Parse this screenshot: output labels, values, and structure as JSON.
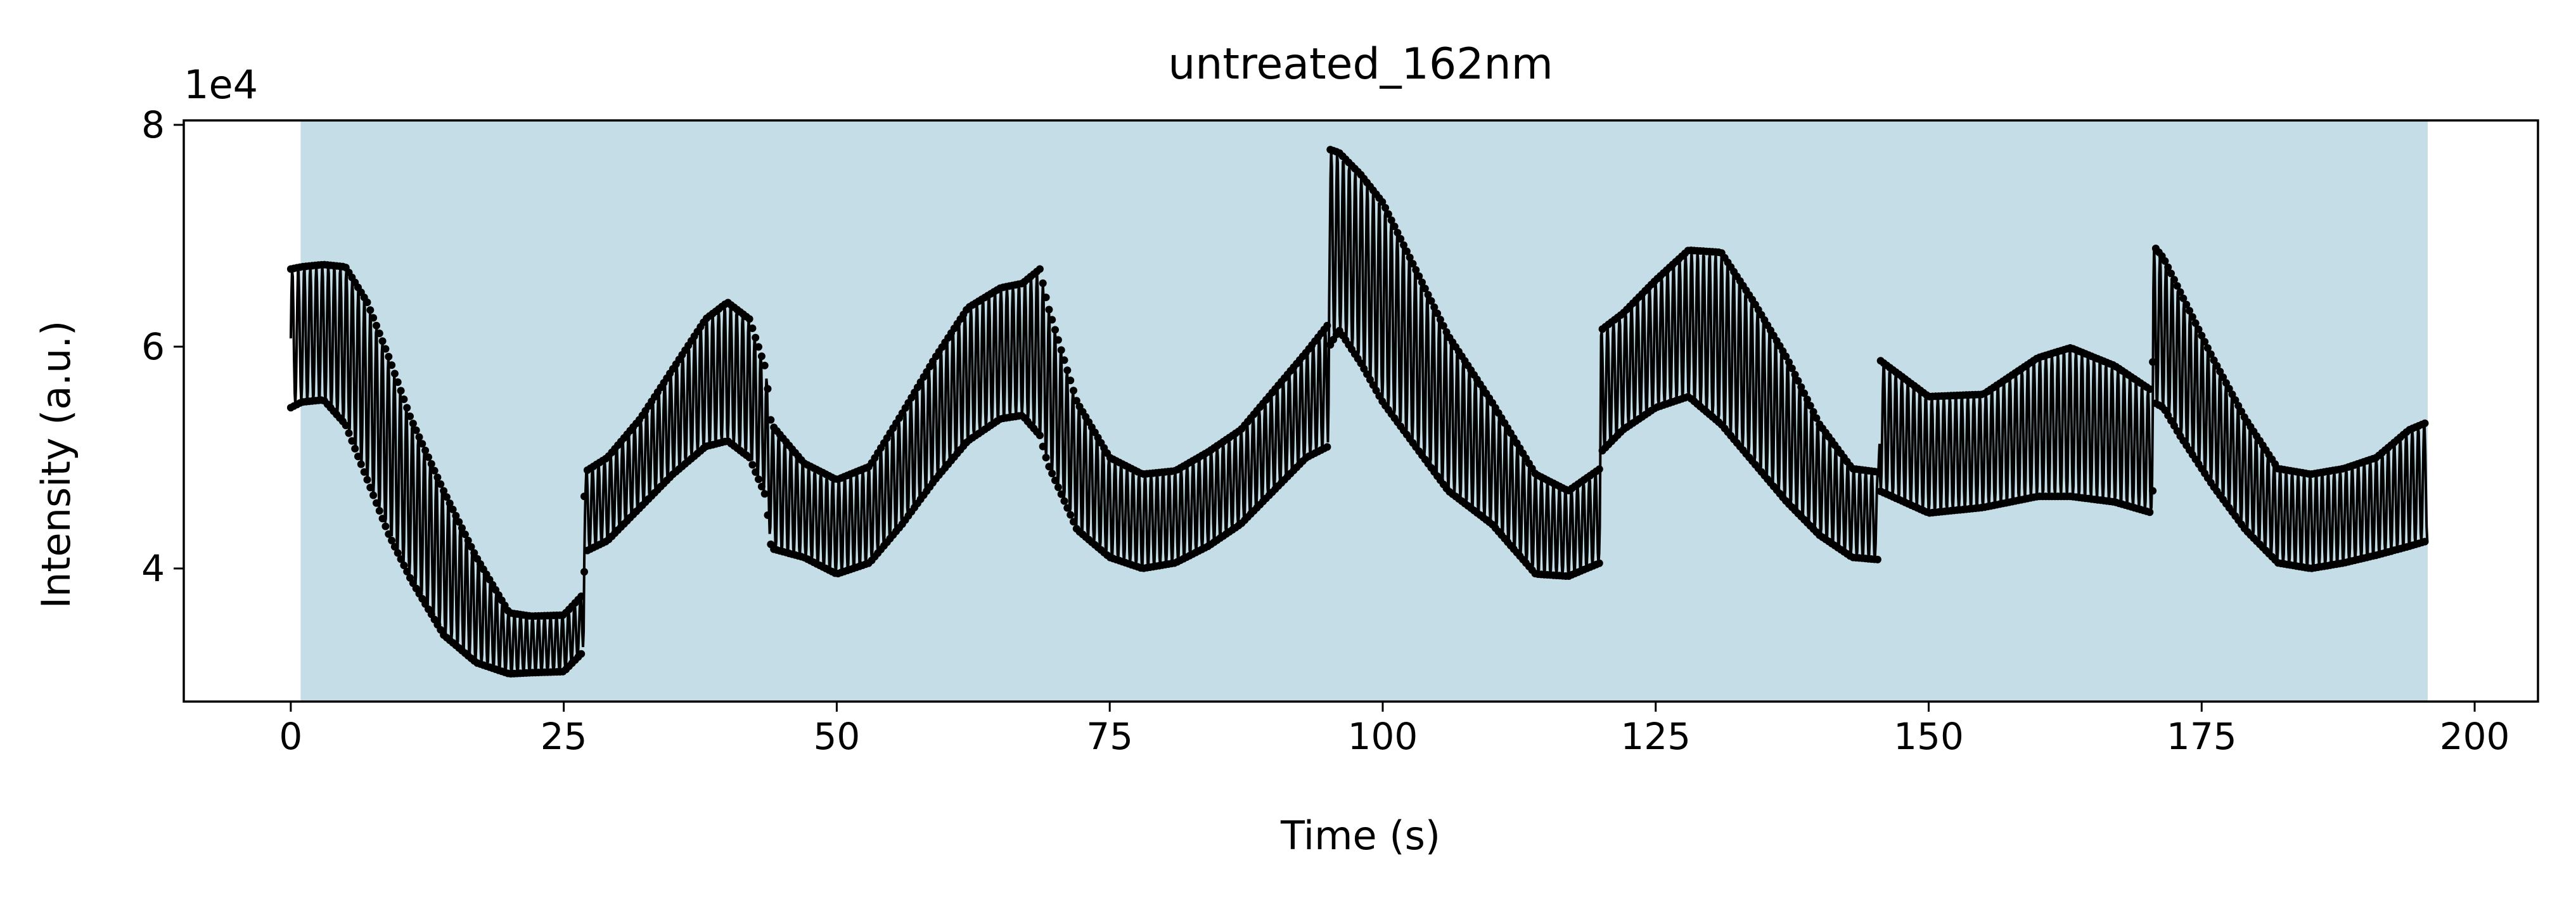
{
  "chart_data": {
    "type": "scatter",
    "title": "untreated_162nm",
    "xlabel": "Time (s)",
    "ylabel": "Intensity (a.u.)",
    "y_offset_label": "1e4",
    "y_multiplier": 10000,
    "xlim": [
      -9.8,
      205.8
    ],
    "ylim": [
      28000,
      80400
    ],
    "x_ticks": [
      0,
      25,
      50,
      75,
      100,
      125,
      150,
      175,
      200
    ],
    "y_ticks": [
      4,
      6,
      8
    ],
    "grid": false,
    "legend": "none",
    "shaded_region": {
      "x_start": 0.9,
      "x_end": 195.7,
      "color": "#c5dde6"
    },
    "marker_color": "#000000",
    "series": [
      {
        "envelope_x": [
          0,
          1,
          3,
          5,
          7,
          9,
          11,
          14,
          17,
          20,
          22,
          25,
          26.8,
          26.9,
          29,
          32,
          35,
          38,
          40,
          42,
          43.5,
          44,
          47,
          50,
          53,
          56,
          59,
          62,
          65,
          67,
          68.6,
          69.3,
          72,
          75,
          78,
          81,
          84,
          87,
          90,
          93,
          95,
          95.1,
          96,
          98,
          100,
          103,
          106,
          110,
          114,
          117,
          119.9,
          120,
          122,
          125,
          128,
          131,
          134,
          137,
          140,
          143,
          145.4,
          145.5,
          150,
          155,
          160,
          163,
          167,
          170.5,
          170.6,
          171.5,
          173,
          176,
          179,
          182,
          185,
          188,
          191,
          194,
          195.7
        ],
        "envelope_upper": [
          67000,
          67200,
          67400,
          67200,
          64000,
          59000,
          53500,
          47000,
          41000,
          36000,
          35700,
          35800,
          37700,
          48700,
          50000,
          53500,
          58000,
          62500,
          64000,
          62500,
          58000,
          53000,
          49500,
          48000,
          49200,
          54000,
          59000,
          63500,
          65300,
          65700,
          67000,
          63800,
          55000,
          50000,
          48500,
          48800,
          50500,
          52500,
          56000,
          59500,
          62000,
          77800,
          77500,
          75500,
          73000,
          67000,
          61000,
          55000,
          48500,
          47000,
          49000,
          61500,
          63000,
          66000,
          68700,
          68500,
          64000,
          59000,
          53000,
          49000,
          48700,
          58800,
          55500,
          55700,
          59000,
          59900,
          58300,
          56000,
          69100,
          68000,
          65000,
          59000,
          53500,
          49000,
          48500,
          49000,
          50000,
          52500,
          53200
        ],
        "envelope_lower": [
          54500,
          55000,
          55200,
          53000,
          48000,
          43000,
          39000,
          34000,
          31500,
          30500,
          30600,
          30700,
          32500,
          41500,
          42500,
          45500,
          48500,
          51000,
          51500,
          50000,
          46500,
          41800,
          41000,
          39500,
          40500,
          44000,
          48000,
          51500,
          53500,
          53800,
          52000,
          49500,
          43500,
          41000,
          40000,
          40500,
          42000,
          44000,
          47000,
          50000,
          51000,
          60000,
          61500,
          58500,
          55000,
          51000,
          47000,
          44000,
          39500,
          39300,
          40500,
          50500,
          52500,
          54500,
          55500,
          53000,
          49500,
          46000,
          43000,
          41000,
          40800,
          47000,
          45000,
          45500,
          46500,
          46500,
          46000,
          45000,
          55000,
          54500,
          52000,
          47500,
          43500,
          40500,
          40000,
          40500,
          41200,
          42000,
          42500
        ]
      }
    ]
  }
}
